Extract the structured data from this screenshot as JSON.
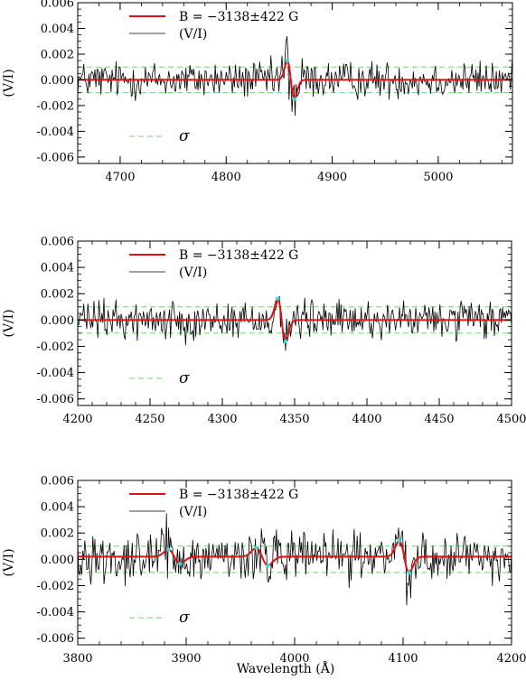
{
  "figure": {
    "xlabel": "Wavelength (Å)"
  },
  "chart_data": [
    {
      "type": "line",
      "ylabel": "(V/I)",
      "xlabel": "",
      "xlim": [
        4660,
        5070
      ],
      "ylim": [
        -0.0065,
        0.006
      ],
      "xticks": [
        "4700",
        "4800",
        "4900",
        "5000"
      ],
      "xtick_values": [
        4700,
        4800,
        4900,
        5000
      ],
      "yticks": [
        "0.006",
        "0.004",
        "0.002",
        "0.000",
        "-0.002",
        "-0.004",
        "-0.006"
      ],
      "ytick_values": [
        0.006,
        0.004,
        0.002,
        0.0,
        -0.002,
        -0.004,
        -0.006
      ],
      "sigma": 0.001,
      "legend": {
        "model_label": "B = −3138±422 G",
        "obs_label": "(V/I)",
        "sigma_label": "σ"
      },
      "features": [
        {
          "center": 4861,
          "amp": 0.0022,
          "wing": 0.018,
          "noise_boost": 2.2
        }
      ],
      "noise_amplitude": 0.0009,
      "baseline": 0.0
    },
    {
      "type": "line",
      "ylabel": "(V/I)",
      "xlabel": "",
      "xlim": [
        4200,
        4500
      ],
      "ylim": [
        -0.0065,
        0.006
      ],
      "xticks": [
        "4200",
        "4250",
        "4300",
        "4350",
        "4400",
        "4450",
        "4500"
      ],
      "xtick_values": [
        4200,
        4250,
        4300,
        4350,
        4400,
        4450,
        4500
      ],
      "yticks": [
        "0.006",
        "0.004",
        "0.002",
        "0.000",
        "-0.002",
        "-0.004",
        "-0.006"
      ],
      "ytick_values": [
        0.006,
        0.004,
        0.002,
        0.0,
        -0.002,
        -0.004,
        -0.006
      ],
      "sigma": 0.001,
      "legend": {
        "model_label": "B = −3138±422 G",
        "obs_label": "(V/I)",
        "sigma_label": "σ"
      },
      "features": [
        {
          "center": 4341,
          "amp": 0.0024,
          "wing": 0.02,
          "noise_boost": 1.4
        }
      ],
      "noise_amplitude": 0.0009,
      "baseline": 0.0
    },
    {
      "type": "line",
      "ylabel": "(V/I)",
      "xlabel": "Wavelength (Å)",
      "xlim": [
        3800,
        4200
      ],
      "ylim": [
        -0.0065,
        0.006
      ],
      "xticks": [
        "3800",
        "3900",
        "4000",
        "4100",
        "4200"
      ],
      "xtick_values": [
        3800,
        3900,
        4000,
        4100,
        4200
      ],
      "yticks": [
        "0.006",
        "0.004",
        "0.002",
        "0.000",
        "-0.002",
        "-0.004",
        "-0.006"
      ],
      "ytick_values": [
        0.006,
        0.004,
        0.002,
        0.0,
        -0.002,
        -0.004,
        -0.006
      ],
      "sigma": 0.001,
      "legend": {
        "model_label": "B = −3138±422 G",
        "obs_label": "(V/I)",
        "sigma_label": "σ"
      },
      "features": [
        {
          "center": 3889,
          "amp": 0.0008,
          "wing": 0.03,
          "noise_boost": 1.3
        },
        {
          "center": 3970,
          "amp": 0.001,
          "wing": 0.03,
          "noise_boost": 1.6
        },
        {
          "center": 4101,
          "amp": 0.0018,
          "wing": 0.025,
          "noise_boost": 1.3
        }
      ],
      "noise_amplitude": 0.0011,
      "baseline": 0.0002
    }
  ]
}
